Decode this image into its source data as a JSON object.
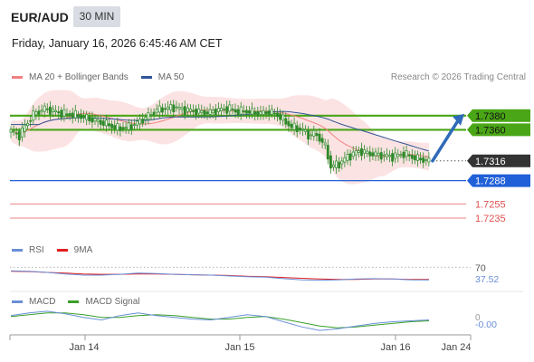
{
  "header": {
    "symbol": "EUR/AUD",
    "timeframe": "30 MIN",
    "datetime": "Friday, January 16, 2026 6:45:46 AM CET"
  },
  "legends": {
    "main": [
      {
        "label": "MA 20 + Bollinger Bands",
        "color": "#f08080"
      },
      {
        "label": "MA 50",
        "color": "#2f5596"
      }
    ],
    "rsi": [
      {
        "label": "RSI",
        "color": "#6a8fd8"
      },
      {
        "label": "9MA",
        "color": "#e02020"
      }
    ],
    "macd": [
      {
        "label": "MACD",
        "color": "#6a8fd8"
      },
      {
        "label": "MACD Signal",
        "color": "#3aa02a"
      }
    ]
  },
  "copyright": "Research © 2026 Trading Central",
  "colors": {
    "resistance_green": "#4aa616",
    "support_blue": "#2060d8",
    "target_red": "#e05050",
    "price_dark": "#333333",
    "arrow": "#2f6ab8",
    "bollinger_fill": "#fbdada",
    "candle": "#2f8a2a"
  },
  "chart_data": {
    "type": "candlestick",
    "y_range": [
      1.722,
      1.7405
    ],
    "x_labels": [
      "Jan 14",
      "Jan 15",
      "Jan 16",
      "Jan 24"
    ],
    "levels": [
      {
        "value": "1.7380",
        "role": "resistance",
        "color": "#4aa616"
      },
      {
        "value": "1.7360",
        "role": "resistance",
        "color": "#4aa616"
      },
      {
        "value": "1.7316",
        "role": "last price",
        "color": "#333333"
      },
      {
        "value": "1.7288",
        "role": "pivot",
        "color": "#2060d8"
      },
      {
        "value": "1.7255",
        "role": "support",
        "color": "#e05050"
      },
      {
        "value": "1.7235",
        "role": "support",
        "color": "#e05050"
      }
    ],
    "anchors": [
      {
        "i": 0,
        "v": 1.7358
      },
      {
        "i": 3,
        "v": 1.7352
      },
      {
        "i": 5,
        "v": 1.7365
      },
      {
        "i": 8,
        "v": 1.7382
      },
      {
        "i": 12,
        "v": 1.739
      },
      {
        "i": 18,
        "v": 1.7383
      },
      {
        "i": 24,
        "v": 1.738
      },
      {
        "i": 30,
        "v": 1.7373
      },
      {
        "i": 34,
        "v": 1.7368
      },
      {
        "i": 38,
        "v": 1.7362
      },
      {
        "i": 42,
        "v": 1.7364
      },
      {
        "i": 46,
        "v": 1.7372
      },
      {
        "i": 52,
        "v": 1.7388
      },
      {
        "i": 58,
        "v": 1.7392
      },
      {
        "i": 62,
        "v": 1.7388
      },
      {
        "i": 66,
        "v": 1.7386
      },
      {
        "i": 70,
        "v": 1.7384
      },
      {
        "i": 74,
        "v": 1.7388
      },
      {
        "i": 78,
        "v": 1.739
      },
      {
        "i": 80,
        "v": 1.7386
      },
      {
        "i": 84,
        "v": 1.7386
      },
      {
        "i": 88,
        "v": 1.7383
      },
      {
        "i": 92,
        "v": 1.7385
      },
      {
        "i": 95,
        "v": 1.7381
      },
      {
        "i": 100,
        "v": 1.7364
      },
      {
        "i": 104,
        "v": 1.736
      },
      {
        "i": 106,
        "v": 1.7352
      },
      {
        "i": 108,
        "v": 1.7355
      },
      {
        "i": 110,
        "v": 1.7348
      },
      {
        "i": 112,
        "v": 1.7336
      },
      {
        "i": 114,
        "v": 1.7308
      },
      {
        "i": 117,
        "v": 1.7312
      },
      {
        "i": 120,
        "v": 1.7322
      },
      {
        "i": 124,
        "v": 1.733
      },
      {
        "i": 128,
        "v": 1.7326
      },
      {
        "i": 132,
        "v": 1.7324
      },
      {
        "i": 136,
        "v": 1.7322
      },
      {
        "i": 140,
        "v": 1.7326
      },
      {
        "i": 144,
        "v": 1.732
      },
      {
        "i": 149,
        "v": 1.7316
      }
    ],
    "rsi": {
      "last": "37.52",
      "level": "70",
      "series": [
        61,
        60,
        57,
        53,
        50,
        50,
        52,
        55,
        54,
        52,
        51,
        50,
        48,
        46,
        45,
        41,
        38,
        37,
        38,
        40,
        41,
        40,
        38,
        37.52
      ],
      "ma9": [
        60,
        59,
        57,
        55,
        53,
        52,
        52,
        53,
        53,
        52,
        51,
        50,
        49,
        47,
        46,
        44,
        42,
        40,
        39,
        39,
        40,
        40,
        39,
        39
      ]
    },
    "macd": {
      "last": "-0.00",
      "zero_label": "0",
      "macd": [
        0.3,
        0.6,
        0.8,
        0.5,
        0.1,
        -0.2,
        0.3,
        0.6,
        0.3,
        0.1,
        -0.1,
        -0.2,
        0.1,
        0.4,
        0.2,
        -0.4,
        -1.0,
        -1.4,
        -1.2,
        -0.9,
        -0.6,
        -0.4,
        -0.3,
        -0.2
      ],
      "signal": [
        0.2,
        0.4,
        0.6,
        0.6,
        0.4,
        0.1,
        0.1,
        0.3,
        0.4,
        0.3,
        0.1,
        -0.1,
        -0.1,
        0.1,
        0.2,
        -0.1,
        -0.5,
        -0.9,
        -1.1,
        -1.0,
        -0.8,
        -0.6,
        -0.4,
        -0.3
      ]
    }
  }
}
